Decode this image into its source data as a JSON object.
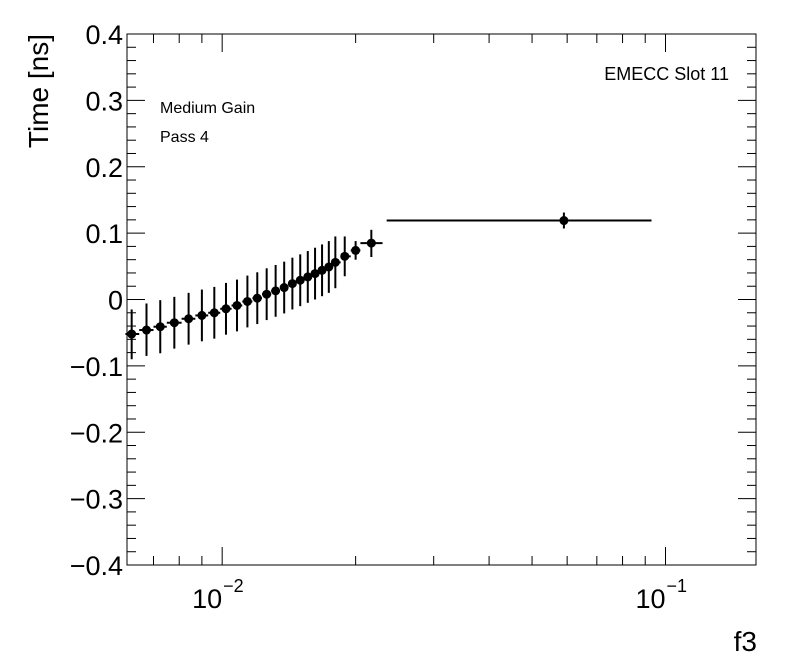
{
  "chart_data": {
    "type": "scatter",
    "title": "",
    "xlabel": "f3",
    "ylabel": "Time [ns]",
    "xscale": "log",
    "xlim": [
      0.0061,
      0.16
    ],
    "ylim": [
      -0.4,
      0.4
    ],
    "y_ticks": [
      -0.4,
      -0.3,
      -0.2,
      -0.1,
      0,
      0.1,
      0.2,
      0.3,
      0.4
    ],
    "y_tick_labels": [
      "−0.4",
      "−0.3",
      "−0.2",
      "−0.1",
      "0",
      "0.1",
      "0.2",
      "0.3",
      "0.4"
    ],
    "x_ticks": [
      {
        "value": 0.01,
        "base": "10",
        "exp": "−2"
      },
      {
        "value": 0.1,
        "base": "10",
        "exp": "−1"
      }
    ],
    "grid": false,
    "annotations": {
      "top_left": [
        "Medium Gain",
        "Pass 4"
      ],
      "top_right": "EMECC Slot 11"
    },
    "points": [
      {
        "x": 0.00625,
        "y": -0.052,
        "xlo": 0.00605,
        "xhi": 0.0065,
        "ylo": -0.09,
        "yhi": -0.015
      },
      {
        "x": 0.00675,
        "y": -0.046,
        "xlo": 0.0065,
        "xhi": 0.007,
        "ylo": -0.085,
        "yhi": -0.006
      },
      {
        "x": 0.00725,
        "y": -0.041,
        "xlo": 0.007,
        "xhi": 0.0075,
        "ylo": -0.081,
        "yhi": -0.001
      },
      {
        "x": 0.0078,
        "y": -0.035,
        "xlo": 0.0075,
        "xhi": 0.0081,
        "ylo": -0.074,
        "yhi": 0.004
      },
      {
        "x": 0.0084,
        "y": -0.029,
        "xlo": 0.0081,
        "xhi": 0.0087,
        "ylo": -0.068,
        "yhi": 0.01
      },
      {
        "x": 0.009,
        "y": -0.024,
        "xlo": 0.0087,
        "xhi": 0.0093,
        "ylo": -0.063,
        "yhi": 0.015
      },
      {
        "x": 0.0096,
        "y": -0.02,
        "xlo": 0.0093,
        "xhi": 0.0099,
        "ylo": -0.059,
        "yhi": 0.019
      },
      {
        "x": 0.0102,
        "y": -0.014,
        "xlo": 0.0099,
        "xhi": 0.0105,
        "ylo": -0.053,
        "yhi": 0.025
      },
      {
        "x": 0.0108,
        "y": -0.009,
        "xlo": 0.0105,
        "xhi": 0.0111,
        "ylo": -0.048,
        "yhi": 0.03
      },
      {
        "x": 0.0114,
        "y": -0.003,
        "xlo": 0.0111,
        "xhi": 0.0117,
        "ylo": -0.042,
        "yhi": 0.036
      },
      {
        "x": 0.012,
        "y": 0.002,
        "xlo": 0.0117,
        "xhi": 0.0123,
        "ylo": -0.037,
        "yhi": 0.041
      },
      {
        "x": 0.0126,
        "y": 0.008,
        "xlo": 0.0123,
        "xhi": 0.0129,
        "ylo": -0.031,
        "yhi": 0.047
      },
      {
        "x": 0.0132,
        "y": 0.013,
        "xlo": 0.0129,
        "xhi": 0.0135,
        "ylo": -0.026,
        "yhi": 0.052
      },
      {
        "x": 0.0138,
        "y": 0.018,
        "xlo": 0.0135,
        "xhi": 0.0141,
        "ylo": -0.021,
        "yhi": 0.057
      },
      {
        "x": 0.0144,
        "y": 0.024,
        "xlo": 0.0141,
        "xhi": 0.0147,
        "ylo": -0.015,
        "yhi": 0.063
      },
      {
        "x": 0.015,
        "y": 0.029,
        "xlo": 0.0147,
        "xhi": 0.0153,
        "ylo": -0.01,
        "yhi": 0.068
      },
      {
        "x": 0.0156,
        "y": 0.034,
        "xlo": 0.0153,
        "xhi": 0.0159,
        "ylo": -0.005,
        "yhi": 0.073
      },
      {
        "x": 0.0162,
        "y": 0.039,
        "xlo": 0.0159,
        "xhi": 0.0165,
        "ylo": 0.0,
        "yhi": 0.078
      },
      {
        "x": 0.0168,
        "y": 0.044,
        "xlo": 0.0165,
        "xhi": 0.0171,
        "ylo": 0.005,
        "yhi": 0.083
      },
      {
        "x": 0.0174,
        "y": 0.049,
        "xlo": 0.0171,
        "xhi": 0.0177,
        "ylo": 0.01,
        "yhi": 0.088
      },
      {
        "x": 0.018,
        "y": 0.056,
        "xlo": 0.0177,
        "xhi": 0.0185,
        "ylo": 0.017,
        "yhi": 0.095
      },
      {
        "x": 0.0189,
        "y": 0.065,
        "xlo": 0.0185,
        "xhi": 0.0195,
        "ylo": 0.035,
        "yhi": 0.095
      },
      {
        "x": 0.02,
        "y": 0.074,
        "xlo": 0.0195,
        "xhi": 0.0205,
        "ylo": 0.06,
        "yhi": 0.088
      },
      {
        "x": 0.0217,
        "y": 0.085,
        "xlo": 0.0205,
        "xhi": 0.023,
        "ylo": 0.064,
        "yhi": 0.105
      },
      {
        "x": 0.059,
        "y": 0.119,
        "xlo": 0.0235,
        "xhi": 0.093,
        "ylo": 0.107,
        "yhi": 0.131
      }
    ]
  }
}
